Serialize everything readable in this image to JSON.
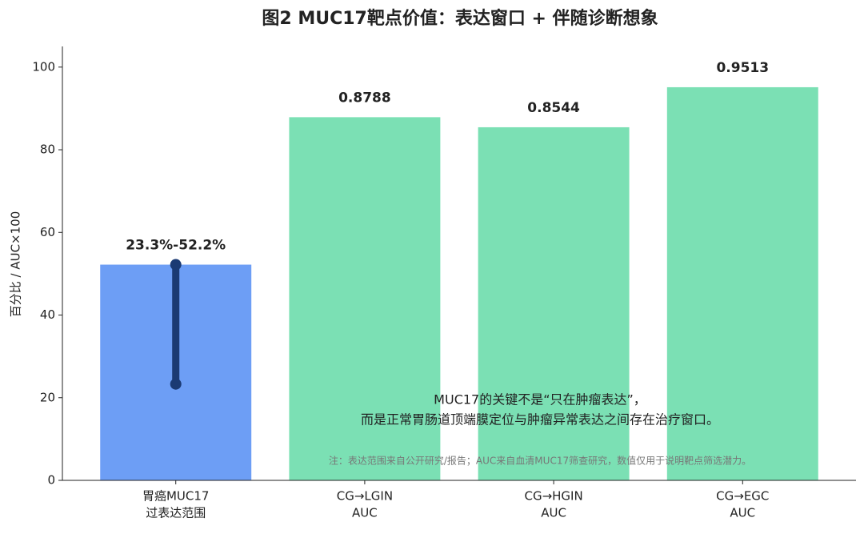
{
  "chart_data": {
    "type": "bar",
    "title": "图2  MUC17靶点价值：表达窗口 + 伴随诊断想象",
    "ylabel": "百分比 / AUC×100",
    "categories": [
      [
        "胃癌MUC17",
        "过表达范围"
      ],
      [
        "CG→LGIN",
        "AUC"
      ],
      [
        "CG→HGIN",
        "AUC"
      ],
      [
        "CG→EGC",
        "AUC"
      ]
    ],
    "values": [
      52.2,
      87.88,
      85.44,
      95.13
    ],
    "value_labels": [
      "23.3%-52.2%",
      "0.8788",
      "0.8544",
      "0.9513"
    ],
    "colors": [
      "#6d9ef5",
      "#7be0b4",
      "#7be0b4",
      "#7be0b4"
    ],
    "range": {
      "category": 0,
      "low": 23.3,
      "high": 52.2,
      "color": "#1b3a73"
    },
    "ylim": [
      0,
      105
    ],
    "yticks": [
      0,
      20,
      40,
      60,
      80,
      100
    ],
    "annotation": [
      "MUC17的关键不是“只在肿瘤表达”，",
      "而是正常胃肠道顶端膜定位与肿瘤异常表达之间存在治疗窗口。"
    ],
    "note": "注：表达范围来自公开研究/报告；AUC来自血清MUC17筛查研究，数值仅用于说明靶点筛选潜力。"
  }
}
